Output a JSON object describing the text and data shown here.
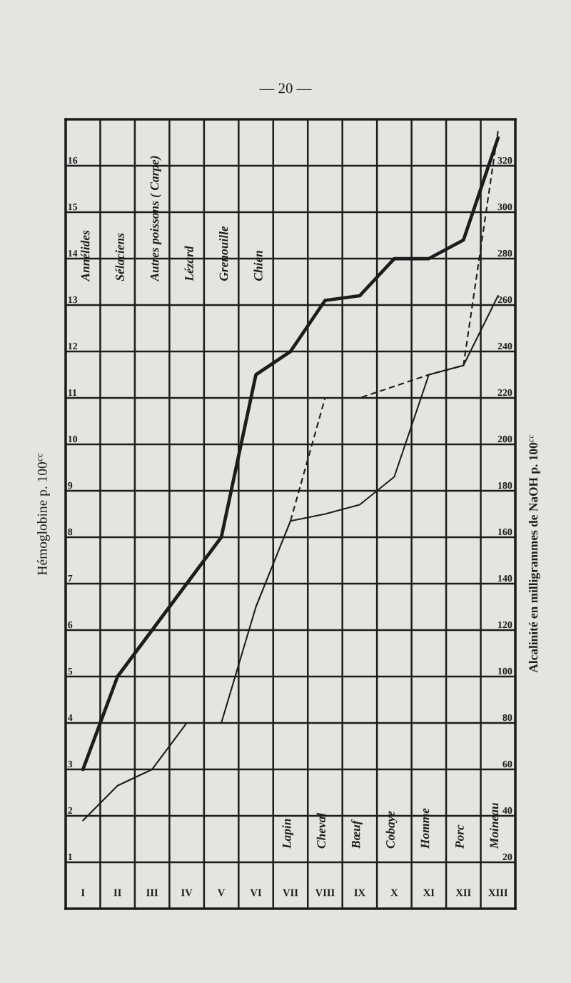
{
  "chart_data": {
    "type": "line",
    "ylabel": "Hémoglobine p. 100$^{cc}$",
    "y2label": "Alcalinité en milligrammes de NaOH p. 100$^{cc}$",
    "categories": [
      "I",
      "II",
      "III",
      "IV",
      "V",
      "VI",
      "VII",
      "VIII",
      "IX",
      "X",
      "XI",
      "XII",
      "XIII"
    ],
    "series": [
      {
        "color": "#1c1c1c",
        "line_style": "solid",
        "values": [
          3,
          5,
          6,
          7,
          8,
          11.5,
          12,
          13.1,
          13.2,
          14,
          14,
          14.4,
          16.6
        ]
      },
      {
        "color": "#1c1c1c",
        "line_style": "solid",
        "axis": "y2",
        "values": [
          38,
          53,
          60,
          80,
          80,
          130,
          167,
          170,
          174,
          186,
          230,
          234,
          264
        ]
      },
      {
        "color": "#1c1c1c",
        "line_style": "dashed",
        "axis": "y2",
        "values": [
          null,
          null,
          null,
          null,
          null,
          null,
          167,
          220,
          220,
          225,
          230,
          234,
          335
        ]
      }
    ],
    "ylim": [
      0,
      17
    ],
    "yticks": [
      1,
      2,
      3,
      4,
      5,
      6,
      7,
      8,
      9,
      10,
      11,
      12,
      13,
      14,
      15,
      16
    ],
    "y2lim": [
      0,
      340
    ],
    "y2ticks": [
      20,
      40,
      60,
      80,
      100,
      120,
      140,
      160,
      180,
      200,
      220,
      240,
      260,
      280,
      300,
      320
    ],
    "grid": true,
    "annotations": [
      "— 20 —",
      "Annélides",
      "Sélaciens",
      "Autres poissons ( Carpe)",
      "Lézard",
      "Grenouille",
      "Chien",
      "Lapin",
      "Cheval",
      "Bœuf",
      "Cobaye",
      "Homme",
      "Porc",
      "Moineau"
    ]
  }
}
